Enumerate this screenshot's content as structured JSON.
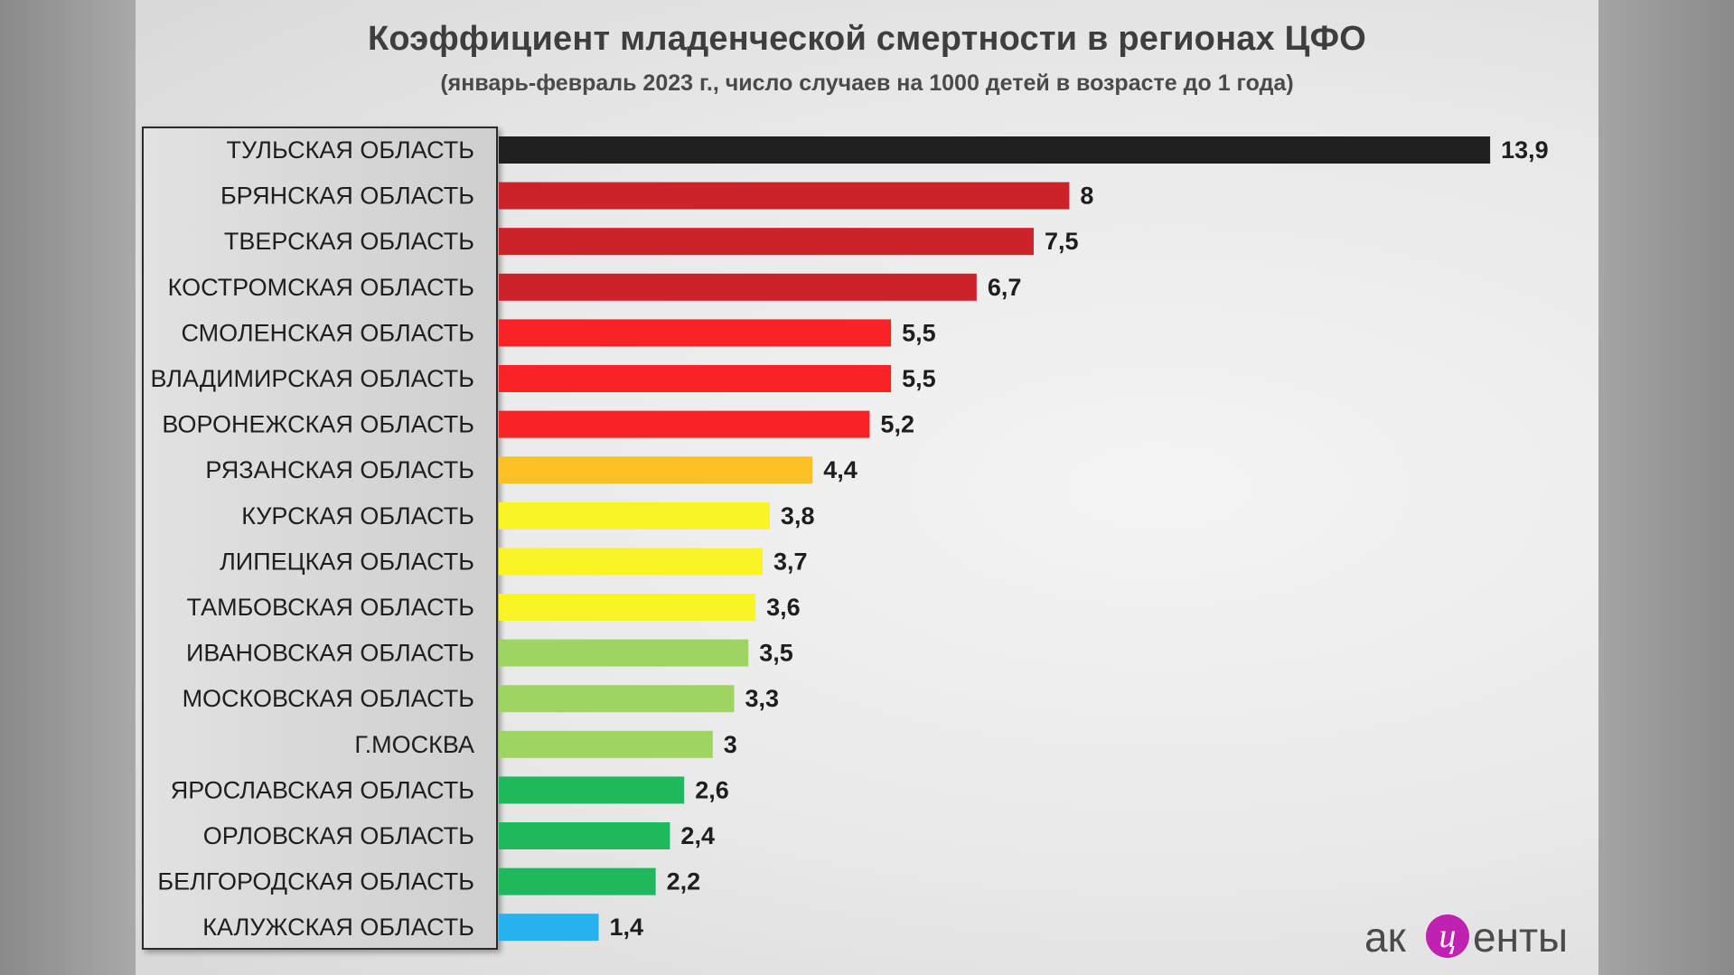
{
  "chart_data": {
    "type": "bar",
    "orientation": "horizontal",
    "title": "Коэффициент младенческой смертности в регионах ЦФО",
    "subtitle": "(январь-февраль 2023 г., число случаев на 1000 детей в возрасте до 1 года)",
    "categories": [
      "ТУЛЬСКАЯ ОБЛАСТЬ",
      "БРЯНСКАЯ ОБЛАСТЬ",
      "ТВЕРСКАЯ ОБЛАСТЬ",
      "КОСТРОМСКАЯ ОБЛАСТЬ",
      "СМОЛЕНСКАЯ ОБЛАСТЬ",
      "ВЛАДИМИРСКАЯ ОБЛАСТЬ",
      "ВОРОНЕЖСКАЯ ОБЛАСТЬ",
      "РЯЗАНСКАЯ ОБЛАСТЬ",
      "КУРСКАЯ ОБЛАСТЬ",
      "ЛИПЕЦКАЯ ОБЛАСТЬ",
      "ТАМБОВСКАЯ ОБЛАСТЬ",
      "ИВАНОВСКАЯ ОБЛАСТЬ",
      "МОСКОВСКАЯ ОБЛАСТЬ",
      "Г.МОСКВА",
      "ЯРОСЛАВСКАЯ ОБЛАСТЬ",
      "ОРЛОВСКАЯ ОБЛАСТЬ",
      "БЕЛГОРОДСКАЯ ОБЛАСТЬ",
      "КАЛУЖСКАЯ ОБЛАСТЬ"
    ],
    "values": [
      13.9,
      8,
      7.5,
      6.7,
      5.5,
      5.5,
      5.2,
      4.4,
      3.8,
      3.7,
      3.6,
      3.5,
      3.3,
      3,
      2.6,
      2.4,
      2.2,
      1.4
    ],
    "value_labels": [
      "13,9",
      "8",
      "7,5",
      "6,7",
      "5,5",
      "5,5",
      "5,2",
      "4,4",
      "3,8",
      "3,7",
      "3,6",
      "3,5",
      "3,3",
      "3",
      "2,6",
      "2,4",
      "2,2",
      "1,4"
    ],
    "colors": [
      "#1f1f1f",
      "#cc2229",
      "#cc2229",
      "#cc2229",
      "#fb2226",
      "#fb2226",
      "#fb2226",
      "#fcc124",
      "#f9f424",
      "#f9f424",
      "#f9f424",
      "#9ed462",
      "#9ed462",
      "#9ed462",
      "#1fb85c",
      "#1fb85c",
      "#1fb85c",
      "#27b2ee"
    ],
    "xlim": [
      0,
      14
    ],
    "grid": false,
    "legend": "none"
  },
  "logo": {
    "left": "ак",
    "mark": "ц",
    "right": "енты",
    "accent": "#c021b0"
  }
}
